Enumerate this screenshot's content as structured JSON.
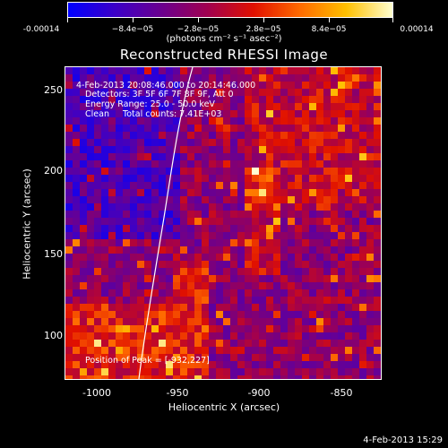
{
  "colorbar": {
    "tick_labels": [
      "-0.00014",
      "−8.4e−05",
      "−2.8e−05",
      "2.8e−05",
      "8.4e−05",
      "0.00014"
    ],
    "unit_label": "(photons cm⁻² s⁻¹ asec⁻²)",
    "colors": [
      "#0000ff",
      "#3b00c8",
      "#6a0090",
      "#a00050",
      "#e01000",
      "#ff6a00",
      "#ffc000",
      "#ffffd0"
    ]
  },
  "plot": {
    "title": "Reconstructed RHESSI Image",
    "annotations": {
      "time_range": "4-Feb-2013 20:08:46.000 to 20:14:46.000",
      "detectors": "Detectors: 3F 5F 6F 7F 8F 9F, Att 0",
      "energy": "Energy Range: 25.0 - 50.0 keV",
      "clean": "Clean     Total counts: 7.41E+03",
      "peak": "Position of Peak = [-932,227]"
    },
    "xlabel": "Heliocentric X (arcsec)",
    "ylabel": "Heliocentric Y (arcsec)",
    "x_ticks": [
      "-1000",
      "-950",
      "-900",
      "-850"
    ],
    "y_ticks": [
      "250",
      "200",
      "150",
      "100"
    ],
    "limb_color": "#ffffff"
  },
  "footer": {
    "timestamp": "4-Feb-2013 15:29"
  }
}
